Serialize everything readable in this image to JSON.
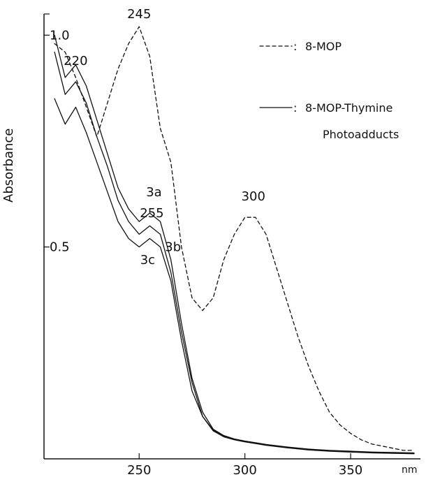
{
  "chart_data": {
    "type": "line",
    "ylabel": "Absorbance",
    "x_unit_label": "nm",
    "xlim": [
      205,
      383
    ],
    "ylim": [
      0.0,
      1.05
    ],
    "x_ticks": [
      250,
      300,
      350
    ],
    "y_tick_labels": [
      {
        "value": 1.0,
        "label": "1.0"
      },
      {
        "value": 0.5,
        "label": "0.5"
      }
    ],
    "legend": [
      {
        "symbol": "----- :",
        "label": "8-MOP",
        "style": "dashed"
      },
      {
        "symbol": "—— :",
        "label": "8-MOP-Thymine",
        "style": "solid"
      },
      {
        "symbol": "",
        "label": "Photoadducts",
        "style": "none"
      }
    ],
    "annotations": [
      {
        "text": "220",
        "x": 220,
        "y": 0.93
      },
      {
        "text": "245",
        "x": 250,
        "y": 1.04
      },
      {
        "text": "255",
        "x": 256,
        "y": 0.57
      },
      {
        "text": "300",
        "x": 304,
        "y": 0.61
      },
      {
        "text": "3a",
        "x": 257,
        "y": 0.62
      },
      {
        "text": "3b",
        "x": 266,
        "y": 0.49
      },
      {
        "text": "3c",
        "x": 254,
        "y": 0.46
      }
    ],
    "series": [
      {
        "name": "8-MOP",
        "style": "dashed",
        "x": [
          210,
          215,
          220,
          225,
          230,
          235,
          240,
          245,
          250,
          255,
          260,
          265,
          270,
          275,
          280,
          285,
          290,
          295,
          300,
          305,
          310,
          315,
          320,
          325,
          330,
          335,
          340,
          345,
          350,
          355,
          360,
          365,
          370,
          375,
          380
        ],
        "y": [
          0.98,
          0.96,
          0.9,
          0.83,
          0.76,
          0.84,
          0.92,
          0.98,
          1.02,
          0.95,
          0.78,
          0.7,
          0.5,
          0.38,
          0.35,
          0.38,
          0.47,
          0.53,
          0.57,
          0.57,
          0.53,
          0.45,
          0.37,
          0.29,
          0.22,
          0.16,
          0.11,
          0.08,
          0.06,
          0.045,
          0.035,
          0.03,
          0.025,
          0.02,
          0.02
        ]
      },
      {
        "name": "3a",
        "style": "solid",
        "x": [
          210,
          215,
          220,
          225,
          230,
          235,
          240,
          245,
          250,
          255,
          260,
          265,
          270,
          275,
          280,
          285,
          290,
          295,
          300,
          305,
          310,
          320,
          330,
          340,
          350,
          360,
          370,
          380
        ],
        "y": [
          1.0,
          0.9,
          0.93,
          0.88,
          0.8,
          0.72,
          0.64,
          0.59,
          0.56,
          0.58,
          0.56,
          0.47,
          0.32,
          0.19,
          0.11,
          0.07,
          0.055,
          0.047,
          0.042,
          0.038,
          0.034,
          0.028,
          0.023,
          0.02,
          0.018,
          0.016,
          0.015,
          0.014
        ]
      },
      {
        "name": "3b",
        "style": "solid",
        "x": [
          210,
          215,
          220,
          225,
          230,
          235,
          240,
          245,
          250,
          255,
          260,
          265,
          270,
          275,
          280,
          285,
          290,
          295,
          300,
          305,
          310,
          320,
          330,
          340,
          350,
          360,
          370,
          380
        ],
        "y": [
          0.96,
          0.86,
          0.89,
          0.84,
          0.76,
          0.69,
          0.61,
          0.56,
          0.53,
          0.55,
          0.53,
          0.44,
          0.3,
          0.18,
          0.1,
          0.068,
          0.054,
          0.046,
          0.041,
          0.037,
          0.033,
          0.027,
          0.022,
          0.019,
          0.017,
          0.015,
          0.014,
          0.013
        ]
      },
      {
        "name": "3c",
        "style": "solid",
        "x": [
          210,
          215,
          220,
          225,
          230,
          235,
          240,
          245,
          250,
          255,
          260,
          265,
          270,
          275,
          280,
          285,
          290,
          295,
          300,
          305,
          310,
          320,
          330,
          340,
          350,
          360,
          370,
          380
        ],
        "y": [
          0.85,
          0.79,
          0.83,
          0.77,
          0.7,
          0.63,
          0.56,
          0.52,
          0.5,
          0.52,
          0.5,
          0.42,
          0.28,
          0.16,
          0.1,
          0.066,
          0.052,
          0.045,
          0.04,
          0.036,
          0.032,
          0.026,
          0.021,
          0.018,
          0.016,
          0.014,
          0.013,
          0.012
        ]
      }
    ]
  }
}
